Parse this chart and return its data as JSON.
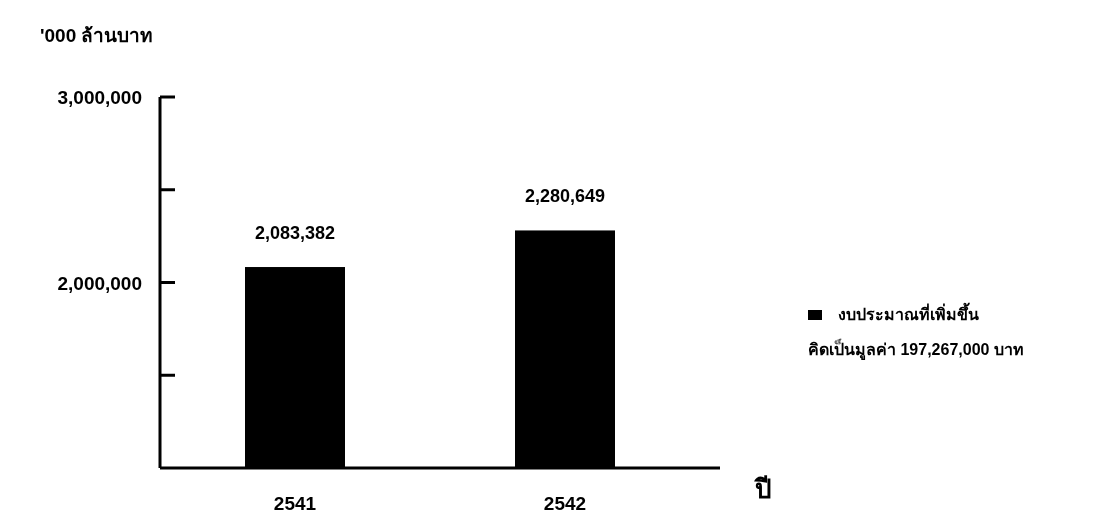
{
  "chart_data": {
    "type": "bar",
    "ylabel": "'000 ล้านบาท",
    "xlabel": "ปี",
    "categories": [
      "2541",
      "2542"
    ],
    "series": [
      {
        "name": "งบประมาณที่เพิ่มขึ้น",
        "color": "#000000",
        "values": [
          2083382,
          2280649
        ],
        "value_labels": [
          "2,083,382",
          "2,280,649"
        ]
      }
    ],
    "ylim": [
      1000000,
      3000000
    ],
    "yticks": [
      {
        "value": 1500000,
        "label": null
      },
      {
        "value": 2000000,
        "label": "2,000,000"
      },
      {
        "value": 2500000,
        "label": null
      },
      {
        "value": 3000000,
        "label": "3,000,000"
      }
    ],
    "legend": "right",
    "grid": false,
    "annotations": [
      "คิดเป็นมูลค่า 197,267,000 บาท"
    ]
  }
}
